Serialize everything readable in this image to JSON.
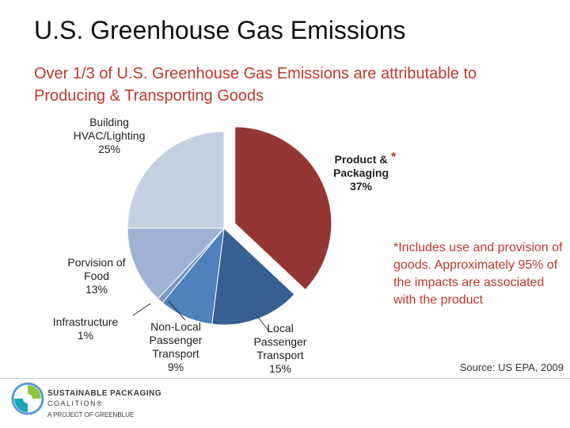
{
  "header": {
    "title": "U.S. Greenhouse Gas Emissions",
    "subtitle": "Over 1/3 of U.S. Greenhouse Gas Emissions are attributable to Producing & Transporting Goods"
  },
  "chart_data": {
    "type": "pie",
    "title": "",
    "slices": [
      {
        "label_lines": [
          "Product &",
          "Packaging",
          "37%"
        ],
        "value": 37,
        "color": "#943634",
        "exploded": true
      },
      {
        "label_lines": [
          "Local",
          "Passenger",
          "Transport",
          "15%"
        ],
        "value": 15,
        "color": "#376092",
        "exploded": false
      },
      {
        "label_lines": [
          "Non-Local",
          "Passenger",
          "Transport",
          "9%"
        ],
        "value": 9,
        "color": "#4f81bd",
        "exploded": false
      },
      {
        "label_lines": [
          "Infrastructure",
          "1%"
        ],
        "value": 1,
        "color": "#7a96c6",
        "exploded": false
      },
      {
        "label_lines": [
          "Porvision of",
          "Food",
          "13%"
        ],
        "value": 13,
        "color": "#9fb2d3",
        "exploded": false
      },
      {
        "label_lines": [
          "Building",
          "HVAC/Lighting",
          "25%"
        ],
        "value": 25,
        "color": "#c5d0e3",
        "exploded": false
      }
    ],
    "annotation_marker": "*",
    "footnote": "*Includes use and provision of goods. Approximately 95% of the impacts are associated with the product",
    "source": "Source: US EPA, 2009"
  },
  "footer": {
    "logo_icon": "spc-logo-icon",
    "logo_line1": "SUSTAINABLE PACKAGING",
    "logo_line2": "COALITION®",
    "logo_line3": "A PROJECT OF GREENBLUE"
  }
}
